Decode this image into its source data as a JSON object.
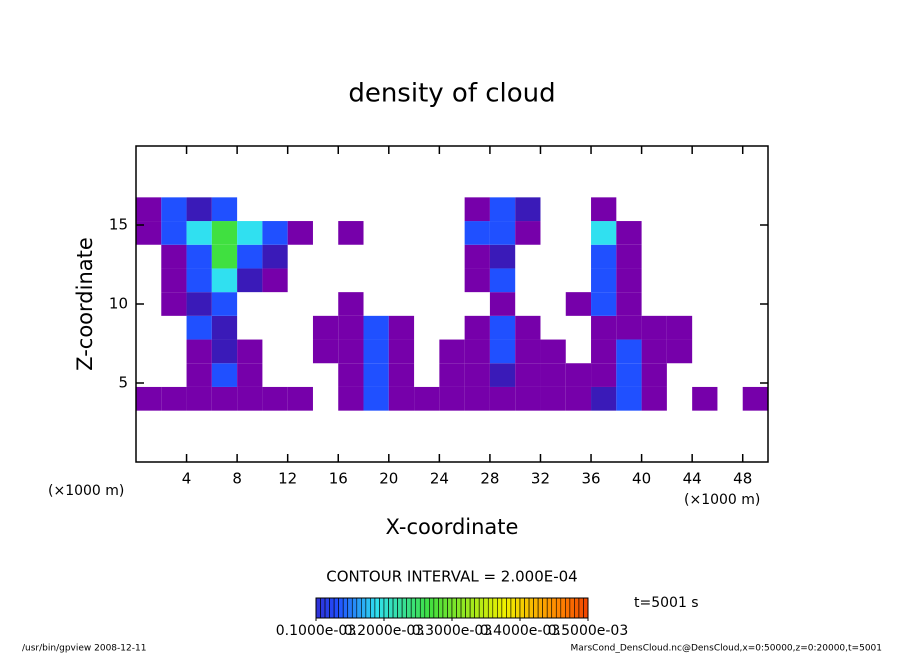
{
  "chart_data": {
    "type": "heatmap",
    "title": "density of cloud",
    "x_label": "X-coordinate",
    "y_label": "Z-coordinate",
    "x_unit_labels": [
      "(×1000 m)",
      "(×1000 m)"
    ],
    "contour_note": "CONTOUR INTERVAL = 2.000E-04",
    "time_label": "t=5001 s",
    "footer_left": "/usr/bin/gpview   2008-12-11",
    "footer_right": "MarsCond_DensCloud.nc@DensCloud,x=0:50000,z=0:20000,t=5001",
    "xlim": [
      0,
      50
    ],
    "ylim": [
      0,
      20
    ],
    "xticks": [
      4,
      8,
      12,
      16,
      20,
      24,
      28,
      32,
      36,
      40,
      44,
      48
    ],
    "yticks": [
      5,
      10,
      15
    ],
    "x": [
      1,
      3,
      5,
      7,
      9,
      11,
      13,
      15,
      17,
      19,
      21,
      23,
      25,
      27,
      29,
      31,
      33,
      35,
      37,
      39,
      41,
      43,
      45,
      47,
      49
    ],
    "z": [
      4,
      5.5,
      7,
      8.5,
      10,
      11.5,
      13,
      14.5,
      16
    ],
    "cell_width": 2,
    "cell_height": 1.5,
    "values": [
      [
        3e-05,
        3e-05,
        3e-05,
        3e-05,
        3e-05,
        3e-05,
        3e-05,
        0,
        3e-05,
        0.00013,
        3e-05,
        3e-05,
        3e-05,
        3e-05,
        3e-05,
        3e-05,
        3e-05,
        3e-05,
        8e-05,
        0.00013,
        3e-05,
        0,
        3e-05,
        0,
        3e-05
      ],
      [
        0,
        0,
        3e-05,
        0.00013,
        3e-05,
        0,
        0,
        0,
        3e-05,
        0.00013,
        3e-05,
        0,
        3e-05,
        3e-05,
        8e-05,
        3e-05,
        3e-05,
        3e-05,
        3e-05,
        0.00013,
        3e-05,
        0,
        0,
        0,
        0
      ],
      [
        0,
        0,
        3e-05,
        8e-05,
        3e-05,
        0,
        0,
        3e-05,
        3e-05,
        0.00013,
        3e-05,
        0,
        3e-05,
        3e-05,
        0.00013,
        3e-05,
        3e-05,
        0,
        3e-05,
        0.00013,
        3e-05,
        3e-05,
        0,
        0,
        0
      ],
      [
        0,
        0,
        0.00013,
        8e-05,
        0,
        0,
        0,
        3e-05,
        3e-05,
        0.00013,
        3e-05,
        0,
        0,
        3e-05,
        0.00013,
        3e-05,
        0,
        0,
        3e-05,
        3e-05,
        3e-05,
        3e-05,
        0,
        0,
        0
      ],
      [
        0,
        3e-05,
        8e-05,
        0.00013,
        0,
        0,
        0,
        0,
        3e-05,
        0,
        0,
        0,
        0,
        0,
        3e-05,
        0,
        0,
        3e-05,
        0.00013,
        3e-05,
        0,
        0,
        0,
        0,
        0
      ],
      [
        0,
        3e-05,
        0.00013,
        0.00018,
        8e-05,
        3e-05,
        0,
        0,
        0,
        0,
        0,
        0,
        0,
        3e-05,
        0.00013,
        0,
        0,
        0,
        0.00013,
        3e-05,
        0,
        0,
        0,
        0,
        0
      ],
      [
        0,
        3e-05,
        0.00013,
        0.00025,
        0.00013,
        8e-05,
        0,
        0,
        0,
        0,
        0,
        0,
        0,
        3e-05,
        8e-05,
        0,
        0,
        0,
        0.00013,
        3e-05,
        0,
        0,
        0,
        0,
        0
      ],
      [
        3e-05,
        0.00013,
        0.00018,
        0.00025,
        0.00018,
        0.00013,
        3e-05,
        0,
        3e-05,
        0,
        0,
        0,
        0,
        0.00013,
        0.00013,
        3e-05,
        0,
        0,
        0.00018,
        3e-05,
        0,
        0,
        0,
        0,
        0
      ],
      [
        3e-05,
        0.00013,
        8e-05,
        0.00013,
        0,
        0,
        0,
        0,
        0,
        0,
        0,
        0,
        0,
        3e-05,
        0.00013,
        8e-05,
        0,
        0,
        3e-05,
        0,
        0,
        0,
        0,
        0,
        0
      ]
    ],
    "colorbar": {
      "lim": [
        0.0001,
        0.0005
      ],
      "ticks": [
        {
          "value": 0.0001,
          "label": "0.1000e-03"
        },
        {
          "value": 0.0002,
          "label": "0.2000e-03"
        },
        {
          "value": 0.0003,
          "label": "0.3000e-03"
        },
        {
          "value": 0.0004,
          "label": "0.4000e-03"
        },
        {
          "value": 0.0005,
          "label": "0.5000e-03"
        }
      ]
    },
    "colormap": [
      "#8000a0",
      "#7000b0",
      "#3a1ab8",
      "#2050ff",
      "#30e0f0",
      "#40e040",
      "#f0f000",
      "#ff8000",
      "#e00000"
    ]
  }
}
